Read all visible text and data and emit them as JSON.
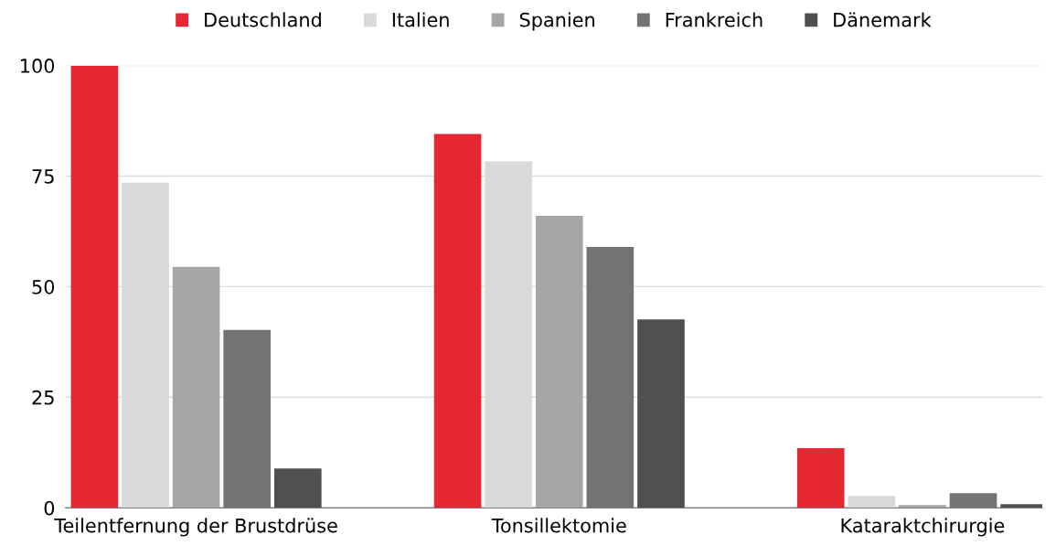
{
  "chart_data": {
    "type": "bar",
    "categories": [
      "Teilentfernung der Brustdrüse",
      "Tonsillektomie",
      "Kataraktchirurgie"
    ],
    "series": [
      {
        "name": "Deutschland",
        "color": "#e52731",
        "values": [
          100,
          84.5,
          13.5
        ]
      },
      {
        "name": "Italien",
        "color": "#d9d9d9",
        "values": [
          73.5,
          78.3,
          2.7
        ]
      },
      {
        "name": "Spanien",
        "color": "#a6a6a6",
        "values": [
          54.5,
          66,
          0.6
        ]
      },
      {
        "name": "Frankreich",
        "color": "#737373",
        "values": [
          40.2,
          59,
          3.3
        ]
      },
      {
        "name": "Dänemark",
        "color": "#505050",
        "values": [
          8.9,
          42.6,
          0.8
        ]
      }
    ],
    "ylim": [
      0,
      100
    ],
    "yticks": [
      0,
      25,
      50,
      75,
      100
    ],
    "grid": "y",
    "legend": "top"
  }
}
